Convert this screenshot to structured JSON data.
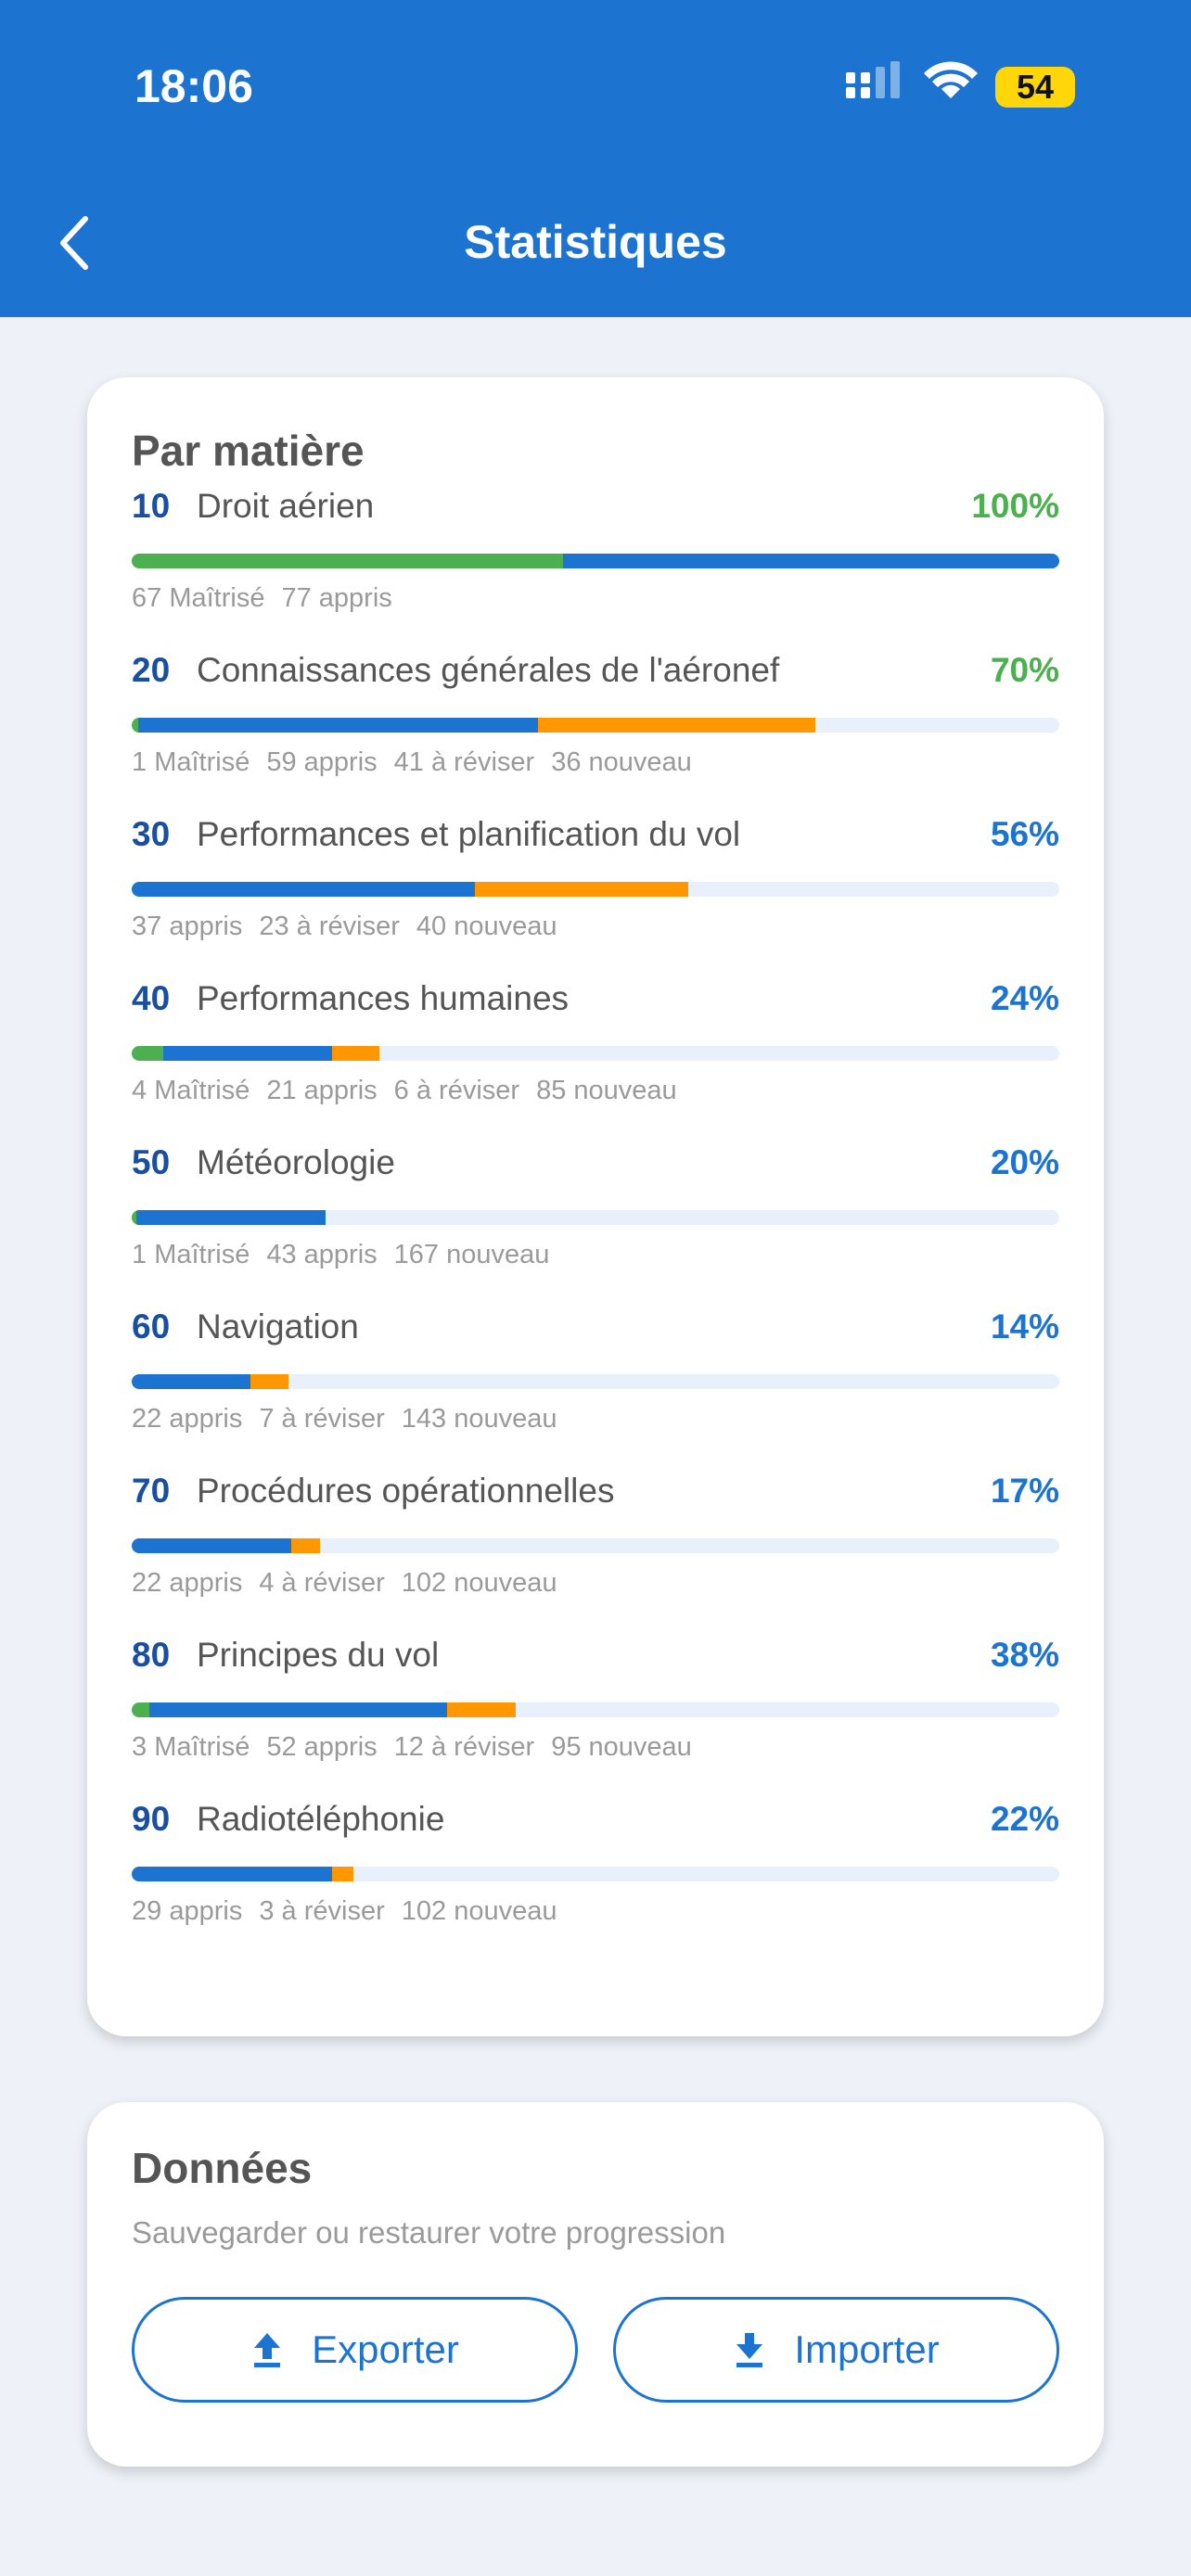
{
  "status_bar": {
    "time": "18:06",
    "battery": "54"
  },
  "header": {
    "title": "Statistiques"
  },
  "subjects_card": {
    "title": "Par matière",
    "subjects": [
      {
        "code": "10",
        "name": "Droit aérien",
        "percent": "100%",
        "percent_color": "#4caf50",
        "stats": [
          {
            "count": 67,
            "label": "Maîtrisé",
            "color": "#4caf50"
          },
          {
            "count": 77,
            "label": "appris",
            "color": "#1d74d0"
          }
        ]
      },
      {
        "code": "20",
        "name": "Connaissances générales de l'aéronef",
        "percent": "70%",
        "percent_color": "#4caf50",
        "stats": [
          {
            "count": 1,
            "label": "Maîtrisé",
            "color": "#4caf50"
          },
          {
            "count": 59,
            "label": "appris",
            "color": "#1d74d0"
          },
          {
            "count": 41,
            "label": "à réviser",
            "color": "#ff9800"
          },
          {
            "count": 36,
            "label": "nouveau",
            "color": "#e8f1fb"
          }
        ]
      },
      {
        "code": "30",
        "name": "Performances et planification du vol",
        "percent": "56%",
        "percent_color": "#1d74d0",
        "stats": [
          {
            "count": 37,
            "label": "appris",
            "color": "#1d74d0"
          },
          {
            "count": 23,
            "label": "à réviser",
            "color": "#ff9800"
          },
          {
            "count": 40,
            "label": "nouveau",
            "color": "#e8f1fb"
          }
        ]
      },
      {
        "code": "40",
        "name": "Performances humaines",
        "percent": "24%",
        "percent_color": "#1d74d0",
        "stats": [
          {
            "count": 4,
            "label": "Maîtrisé",
            "color": "#4caf50"
          },
          {
            "count": 21,
            "label": "appris",
            "color": "#1d74d0"
          },
          {
            "count": 6,
            "label": "à réviser",
            "color": "#ff9800"
          },
          {
            "count": 85,
            "label": "nouveau",
            "color": "#e8f1fb"
          }
        ]
      },
      {
        "code": "50",
        "name": "Météorologie",
        "percent": "20%",
        "percent_color": "#1d74d0",
        "stats": [
          {
            "count": 1,
            "label": "Maîtrisé",
            "color": "#4caf50"
          },
          {
            "count": 43,
            "label": "appris",
            "color": "#1d74d0"
          },
          {
            "count": 167,
            "label": "nouveau",
            "color": "#e8f1fb"
          }
        ]
      },
      {
        "code": "60",
        "name": "Navigation",
        "percent": "14%",
        "percent_color": "#1d74d0",
        "stats": [
          {
            "count": 22,
            "label": "appris",
            "color": "#1d74d0"
          },
          {
            "count": 7,
            "label": "à réviser",
            "color": "#ff9800"
          },
          {
            "count": 143,
            "label": "nouveau",
            "color": "#e8f1fb"
          }
        ]
      },
      {
        "code": "70",
        "name": "Procédures opérationnelles",
        "percent": "17%",
        "percent_color": "#1d74d0",
        "stats": [
          {
            "count": 22,
            "label": "appris",
            "color": "#1d74d0"
          },
          {
            "count": 4,
            "label": "à réviser",
            "color": "#ff9800"
          },
          {
            "count": 102,
            "label": "nouveau",
            "color": "#e8f1fb"
          }
        ]
      },
      {
        "code": "80",
        "name": "Principes du vol",
        "percent": "38%",
        "percent_color": "#1d74d0",
        "stats": [
          {
            "count": 3,
            "label": "Maîtrisé",
            "color": "#4caf50"
          },
          {
            "count": 52,
            "label": "appris",
            "color": "#1d74d0"
          },
          {
            "count": 12,
            "label": "à réviser",
            "color": "#ff9800"
          },
          {
            "count": 95,
            "label": "nouveau",
            "color": "#e8f1fb"
          }
        ]
      },
      {
        "code": "90",
        "name": "Radiotéléphonie",
        "percent": "22%",
        "percent_color": "#1d74d0",
        "stats": [
          {
            "count": 29,
            "label": "appris",
            "color": "#1d74d0"
          },
          {
            "count": 3,
            "label": "à réviser",
            "color": "#ff9800"
          },
          {
            "count": 102,
            "label": "nouveau",
            "color": "#e8f1fb"
          }
        ]
      }
    ]
  },
  "data_card": {
    "title": "Données",
    "subtitle": "Sauvegarder ou restaurer votre progression",
    "export_button": "Exporter",
    "import_button": "Importer"
  }
}
